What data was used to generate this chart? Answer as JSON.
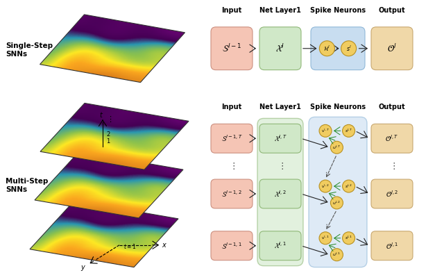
{
  "bg_color": "#ffffff",
  "single_step_label": "Single-Step\nSNNs",
  "multi_step_label": "Multi-Step\nSNNs",
  "headers": [
    "Input",
    "Net Layer1",
    "Spike Neurons",
    "Output"
  ],
  "ss_input_text": "$\\mathcal{S}^{l-1}$",
  "ss_net_text": "$\\mathcal{X}^{l}$",
  "ss_h_text": "$\\mathcal{H}^l$",
  "ss_s_text": "$s^l$",
  "ss_out_text": "$\\mathcal{O}^{l}$",
  "ms_input_texts": [
    "$\\mathcal{S}^{l-1,T}$",
    "$\\mathcal{S}^{l-1,2}$",
    "$\\mathcal{S}^{l-1,1}$"
  ],
  "ms_net_texts": [
    "$\\mathcal{X}^{l,T}$",
    "$\\mathcal{X}^{l,2}$",
    "$\\mathcal{X}^{l,1}$"
  ],
  "ms_v_texts": [
    "$v^{l,T}$",
    "$v^{l,2}$",
    "$v^{l,1}$"
  ],
  "ms_s_texts": [
    "$s^{l,T}$",
    "$s^{l,2}$",
    "$s^{l,1}$"
  ],
  "ms_u_texts": [
    "$u^{l,T}$",
    "$u^{l,2}$",
    "$u^{l,1}$"
  ],
  "ms_out_texts": [
    "$\\mathcal{O}^{l,T}$",
    "$\\mathcal{O}^{l,2}$",
    "$\\mathcal{O}^{l,1}$"
  ],
  "input_color": "#f5c5b5",
  "input_ec": "#cc9080",
  "net_color": "#d0e8c8",
  "net_ec": "#90b878",
  "spike_bg_color": "#c8ddf0",
  "spike_bg_ec": "#90b8d8",
  "output_color": "#f0d8a8",
  "output_ec": "#c8a870",
  "node_color": "#f0cc60",
  "node_ec": "#b89020",
  "arrow_color": "#222222",
  "green_arrow_color": "#228822"
}
